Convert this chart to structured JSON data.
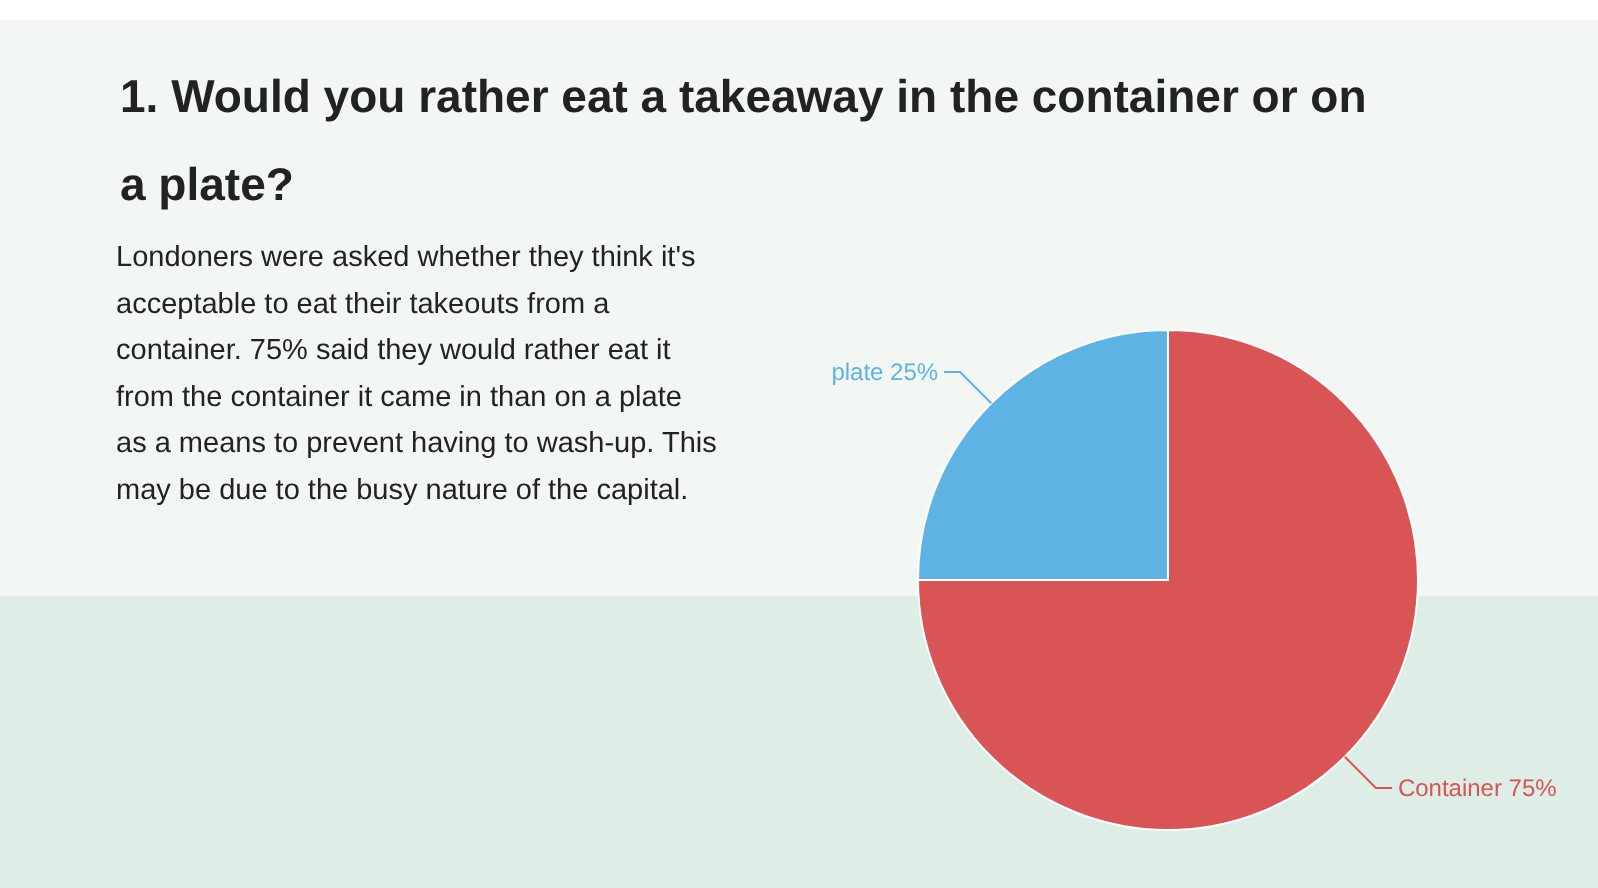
{
  "chart_data": {
    "type": "pie",
    "title": "1. Would you rather eat a takeaway in the container or on a plate?",
    "categories": [
      "Container",
      "plate"
    ],
    "values": [
      75,
      25
    ],
    "colors": [
      "#d95454",
      "#5db4e4"
    ],
    "value_labels": [
      "75%",
      "25%"
    ],
    "annotations": [
      "Londoners were asked whether they think it's acceptable to eat their takeouts from a container. 75% said they would rather eat it from the container it came in than on a plate as a means to prevent having to wash-up. This may be due to the busy nature of the capital."
    ]
  }
}
